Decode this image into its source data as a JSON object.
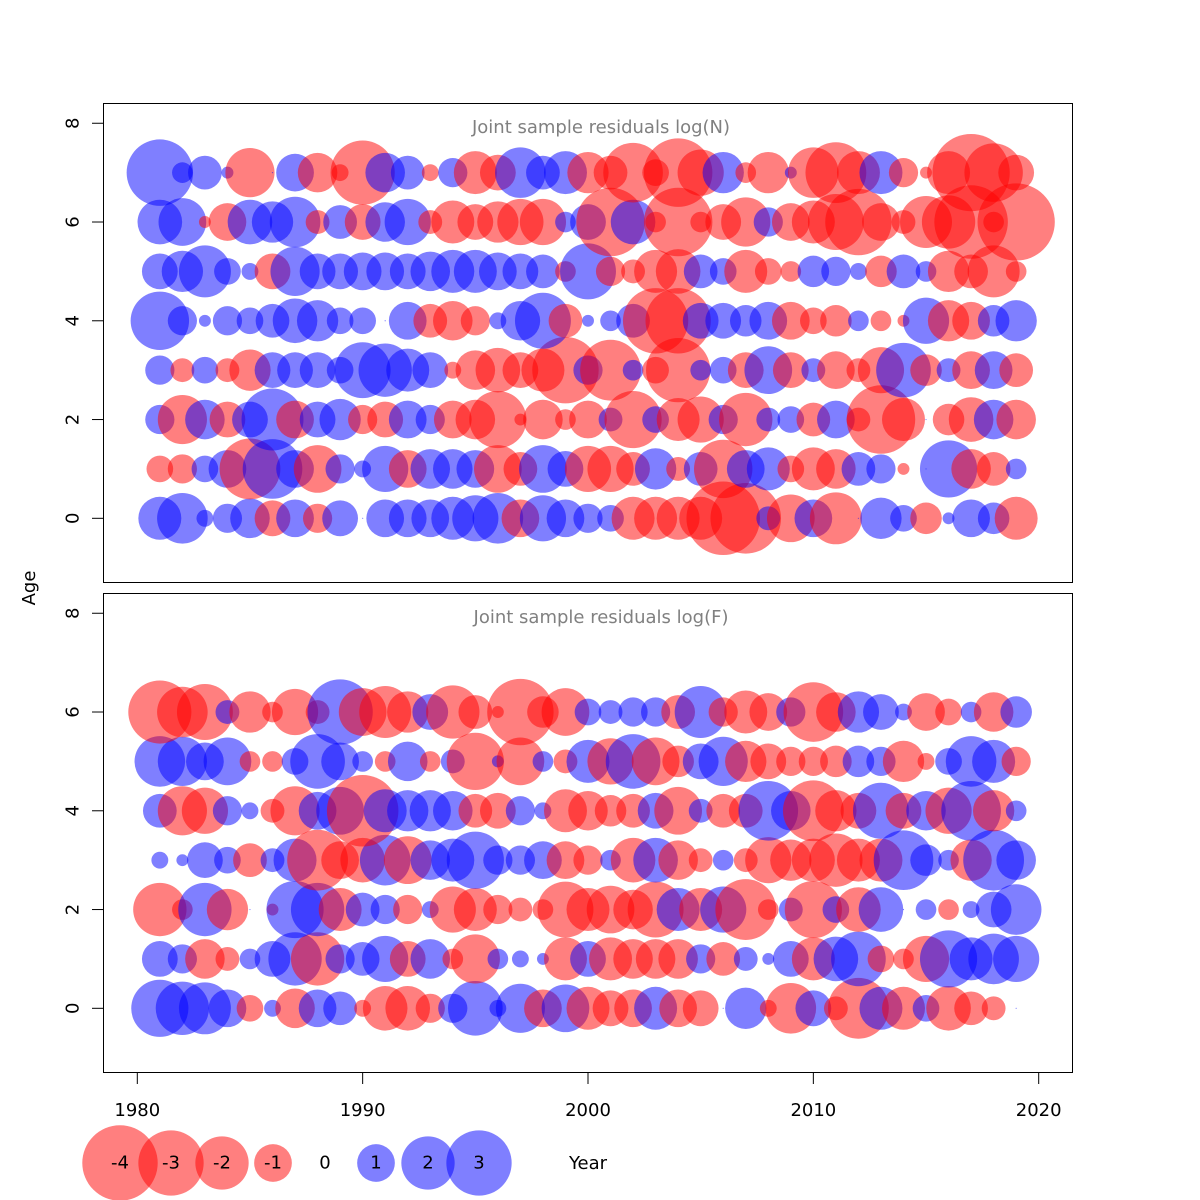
{
  "colors": {
    "negative": "#ff0000",
    "positive": "#0000ff",
    "bubble_opacity": 0.5,
    "title_color": "#808080",
    "axis_color": "#000000"
  },
  "axes": {
    "ylabel": "Age",
    "xlabel": "Year",
    "x_ticks": [
      "1980",
      "1990",
      "2000",
      "2010",
      "2020"
    ],
    "y_ticks": [
      "0",
      "2",
      "4",
      "6",
      "8"
    ]
  },
  "legend": {
    "labels": [
      "-4",
      "-3",
      "-2",
      "-1",
      "0",
      "1",
      "2",
      "3"
    ]
  },
  "chart_data": [
    {
      "type": "scatter",
      "title": "Joint sample residuals log(N)",
      "xlim": [
        1978.5,
        2021.5
      ],
      "ylim": [
        -1.3,
        8.4
      ],
      "x_ticks": [
        1980,
        1990,
        2000,
        2010,
        2020
      ],
      "y_ticks": [
        0,
        2,
        4,
        6,
        8
      ],
      "years": [
        1981,
        1982,
        1983,
        1984,
        1985,
        1986,
        1987,
        1988,
        1989,
        1990,
        1991,
        1992,
        1993,
        1994,
        1995,
        1996,
        1997,
        1998,
        1999,
        2000,
        2001,
        2002,
        2003,
        2004,
        2005,
        2006,
        2007,
        2008,
        2009,
        2010,
        2011,
        2012,
        2013,
        2014,
        2015,
        2016,
        2017,
        2018,
        2019
      ],
      "ages": [
        0,
        1,
        2,
        3,
        4,
        5,
        6,
        7
      ],
      "residuals": {
        "0": [
          1.3,
          1.8,
          0.2,
          0.6,
          1.1,
          -0.9,
          1.0,
          -0.6,
          0.9,
          0.0,
          1.0,
          1.0,
          1.0,
          1.3,
          1.5,
          1.8,
          -1.0,
          1.5,
          1.0,
          0.6,
          0.5,
          -1.3,
          -1.3,
          -1.3,
          -1.3,
          -3.8,
          -3.5,
          0.4,
          -1.6,
          1.0,
          -1.9,
          0.0,
          1.2,
          0.5,
          -0.7,
          0.1,
          1.0,
          0.7,
          -1.3
        ],
        "1": [
          -0.5,
          -0.6,
          0.5,
          1.0,
          -2.6,
          2.5,
          1.0,
          -1.6,
          0.6,
          0.2,
          1.5,
          -1.0,
          1.1,
          1.1,
          1.0,
          -1.6,
          -0.8,
          1.6,
          0.9,
          -1.5,
          -1.5,
          -0.8,
          1.2,
          -0.4,
          0.8,
          -2.4,
          1.0,
          1.3,
          -0.5,
          -1.3,
          -1.1,
          0.8,
          0.6,
          -0.1,
          0.0,
          2.3,
          -1.1,
          -0.8,
          0.3
        ],
        "2": [
          0.6,
          -1.7,
          1.1,
          -0.9,
          0.9,
          2.7,
          -1.0,
          0.9,
          1.2,
          -0.6,
          -0.9,
          1.0,
          0.6,
          -1.0,
          -1.1,
          -2.3,
          -0.1,
          -1.1,
          -0.3,
          -1.0,
          0.4,
          -2.3,
          0.5,
          -1.3,
          -1.5,
          0.6,
          -2.0,
          0.4,
          0.5,
          -0.8,
          1.0,
          -0.4,
          -3.3,
          -1.3,
          0.0,
          -0.7,
          -1.4,
          1.1,
          -1.1
        ],
        "3": [
          0.6,
          -0.4,
          0.5,
          -0.4,
          -1.2,
          0.9,
          0.9,
          0.9,
          0.5,
          2.2,
          2.0,
          1.3,
          0.9,
          -0.2,
          -1.1,
          -1.4,
          -0.9,
          -1.3,
          -3.1,
          0.6,
          -2.6,
          0.3,
          -0.5,
          -2.9,
          0.3,
          0.5,
          -0.9,
          1.6,
          -0.9,
          0.4,
          -1.0,
          -0.4,
          -1.5,
          2.1,
          -0.7,
          0.4,
          -1.0,
          1.0,
          -0.8
        ],
        "4": [
          2.4,
          0.6,
          0.1,
          0.6,
          0.5,
          0.8,
          1.4,
          1.2,
          0.5,
          0.5,
          0.0,
          1.0,
          -0.8,
          -1.1,
          -0.6,
          0.2,
          1.1,
          2.2,
          -0.8,
          0.1,
          0.3,
          0.8,
          -3.0,
          -3.0,
          0.9,
          0.9,
          0.7,
          1.0,
          -1.0,
          -0.5,
          -0.7,
          0.3,
          -0.3,
          -0.1,
          1.5,
          -1.2,
          -1.0,
          0.7,
          1.2
        ],
        "5": [
          0.9,
          1.2,
          1.9,
          0.5,
          0.2,
          -0.9,
          1.7,
          0.9,
          0.9,
          1.0,
          1.0,
          0.9,
          1.1,
          1.3,
          1.3,
          1.0,
          0.9,
          0.8,
          -0.3,
          2.2,
          -0.6,
          -0.4,
          -1.3,
          -1.4,
          0.8,
          0.5,
          -1.3,
          -0.5,
          -0.3,
          0.7,
          0.6,
          0.2,
          -0.7,
          0.8,
          0.3,
          -1.2,
          -0.8,
          -1.9,
          -0.3
        ],
        "6": [
          1.4,
          1.6,
          -0.1,
          -1.0,
          1.4,
          1.2,
          1.8,
          -0.4,
          0.8,
          -0.9,
          1.1,
          1.5,
          -0.4,
          -1.3,
          -0.9,
          -1.2,
          -1.5,
          -1.5,
          0.3,
          0.9,
          -3.3,
          1.4,
          -0.3,
          -3.3,
          -0.3,
          -0.9,
          -1.7,
          0.6,
          -1.0,
          -1.3,
          -2.2,
          -3.1,
          -1.0,
          -0.4,
          -1.9,
          -2.0,
          -3.8,
          -0.3,
          -4.2
        ],
        "7": [
          3.1,
          0.3,
          0.8,
          0.1,
          -1.7,
          0.0,
          1.0,
          -1.1,
          -0.2,
          -2.9,
          1.1,
          0.8,
          -0.2,
          0.6,
          -1.3,
          -0.9,
          1.8,
          0.8,
          1.3,
          -1.2,
          -0.8,
          -2.5,
          -0.5,
          -3.3,
          -1.5,
          1.2,
          -0.3,
          -1.2,
          0.1,
          -1.8,
          -2.6,
          -1.3,
          1.3,
          -0.6,
          -0.1,
          -1.3,
          -4.2,
          -2.4,
          -0.9
        ]
      }
    },
    {
      "type": "scatter",
      "title": "Joint sample residuals log(F)",
      "xlim": [
        1978.5,
        2021.5
      ],
      "ylim": [
        -1.3,
        8.4
      ],
      "x_ticks": [
        1980,
        1990,
        2000,
        2010,
        2020
      ],
      "y_ticks": [
        0,
        2,
        4,
        6,
        8
      ],
      "years": [
        1981,
        1982,
        1983,
        1984,
        1985,
        1986,
        1987,
        1988,
        1989,
        1990,
        1991,
        1992,
        1993,
        1994,
        1995,
        1996,
        1997,
        1998,
        1999,
        2000,
        2001,
        2002,
        2003,
        2004,
        2005,
        2006,
        2007,
        2008,
        2009,
        2010,
        2011,
        2012,
        2013,
        2014,
        2015,
        2016,
        2017,
        2018,
        2019
      ],
      "ages": [
        0,
        1,
        2,
        3,
        4,
        5,
        6
      ],
      "residuals": {
        "0": [
          2.3,
          2.0,
          1.9,
          1.0,
          -0.5,
          0.2,
          -1.1,
          1.0,
          0.8,
          -0.2,
          -1.4,
          -1.4,
          -0.6,
          0.6,
          2.1,
          0.2,
          1.7,
          -1.0,
          1.6,
          -1.3,
          -0.9,
          -1.0,
          1.3,
          -1.0,
          -0.9,
          0.0,
          1.2,
          -0.2,
          -1.8,
          0.9,
          -0.4,
          -2.6,
          1.3,
          -1.3,
          0.5,
          -1.4,
          -0.8,
          -0.4,
          0
        ],
        "1": [
          0.9,
          0.6,
          -1.1,
          -0.4,
          0.3,
          0.9,
          2.0,
          -2.0,
          0.6,
          0.8,
          1.5,
          -0.9,
          1.1,
          -0.3,
          -1.7,
          0.3,
          0.2,
          0.1,
          -1.3,
          0.9,
          -1.3,
          -1.1,
          -1.1,
          -1.1,
          0.6,
          -0.8,
          0.4,
          0.1,
          0.9,
          -1.3,
          1.4,
          2.1,
          -0.5,
          -0.3,
          -1.5,
          2.3,
          1.3,
          1.8,
          1.5
        ],
        "2": [
          -2.0,
          -0.3,
          2.0,
          -1.2,
          0.0,
          -0.1,
          2.3,
          2.0,
          -1.3,
          0.8,
          0.6,
          -0.6,
          0.2,
          -1.5,
          -1.3,
          -0.6,
          -0.4,
          -0.3,
          -2.2,
          -1.3,
          -1.6,
          -1.1,
          -2.2,
          1.3,
          -1.3,
          1.5,
          -2.6,
          -0.3,
          0.4,
          -2.3,
          0.5,
          -1.4,
          1.4,
          0.0,
          0.3,
          -0.3,
          0.2,
          0.9,
          1.8
        ],
        "3": [
          0.2,
          0.1,
          0.9,
          0.5,
          -0.8,
          0.4,
          1.3,
          -2.6,
          -1.0,
          -1.4,
          1.8,
          -1.6,
          1.1,
          1.3,
          2.3,
          0.6,
          0.6,
          1.0,
          -1.0,
          -0.6,
          0.3,
          -1.4,
          1.4,
          -1.1,
          -0.4,
          0.3,
          -0.4,
          -1.5,
          -1.2,
          -1.3,
          -2.0,
          -1.3,
          -1.3,
          2.5,
          0.7,
          0.3,
          -1.2,
          2.6,
          1.1
        ],
        "4": [
          0.8,
          -1.7,
          -1.5,
          0.6,
          0.2,
          -0.4,
          -1.7,
          1.0,
          1.6,
          -3.6,
          1.3,
          1.2,
          1.2,
          1.1,
          -0.8,
          -0.9,
          0.6,
          0.2,
          -1.3,
          -1.1,
          -0.7,
          -0.8,
          0.9,
          -1.6,
          0.4,
          -0.8,
          -0.8,
          2.5,
          1.1,
          -2.6,
          -1.2,
          -0.9,
          2.2,
          -0.9,
          1.1,
          -1.5,
          2.5,
          -1.2,
          0.3
        ],
        "5": [
          1.8,
          1.7,
          1.0,
          1.6,
          -0.3,
          -0.3,
          0.5,
          2.1,
          1.0,
          0.3,
          -0.3,
          1.1,
          -0.3,
          0.4,
          -2.3,
          0.1,
          -1.6,
          0.3,
          -0.4,
          1.3,
          -1.5,
          2.1,
          -1.6,
          -0.7,
          0.9,
          1.7,
          -1.2,
          -0.9,
          -0.6,
          -0.6,
          -0.7,
          0.7,
          0.6,
          -1.2,
          -0.2,
          0.5,
          1.8,
          1.3,
          -0.6
        ],
        "6": [
          -2.8,
          -1.8,
          -2.2,
          0.4,
          -1.2,
          -0.3,
          -1.5,
          -0.4,
          3.0,
          -1.6,
          -1.9,
          -1.2,
          0.9,
          -2.0,
          -0.8,
          -0.1,
          -3.1,
          -0.7,
          -1.6,
          0.5,
          0.4,
          0.6,
          0.6,
          -0.8,
          1.9,
          -0.6,
          -1.3,
          -1.0,
          0.6,
          -2.5,
          -1.1,
          1.2,
          0.9,
          0.2,
          -1.0,
          -0.5,
          0.3,
          -1.1,
          0.7
        ]
      }
    }
  ]
}
